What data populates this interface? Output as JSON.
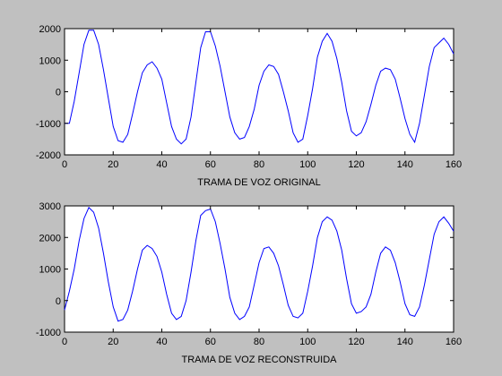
{
  "figure": {
    "background": "#c0c0c0"
  },
  "chart_data": [
    {
      "type": "line",
      "title": "",
      "xlabel": "TRAMA DE VOZ ORIGINAL",
      "ylabel": "",
      "xlim": [
        0,
        160
      ],
      "ylim": [
        -2000,
        2000
      ],
      "xticks": [
        0,
        20,
        40,
        60,
        80,
        100,
        120,
        140,
        160
      ],
      "yticks": [
        -2000,
        -1000,
        0,
        1000,
        2000
      ],
      "grid": false,
      "line_color": "#0000ff",
      "series": [
        {
          "x": [
            0,
            2,
            4,
            6,
            8,
            10,
            12,
            14,
            16,
            18,
            20,
            22,
            24,
            26,
            28,
            30,
            32,
            34,
            36,
            38,
            40,
            42,
            44,
            46,
            48,
            50,
            52,
            54,
            56,
            58,
            60,
            62,
            64,
            66,
            68,
            70,
            72,
            74,
            76,
            78,
            80,
            82,
            84,
            86,
            88,
            90,
            92,
            94,
            96,
            98,
            100,
            102,
            104,
            106,
            108,
            110,
            112,
            114,
            116,
            118,
            120,
            122,
            124,
            126,
            128,
            130,
            132,
            134,
            136,
            138,
            140,
            142,
            144,
            146,
            148,
            150,
            152,
            154,
            156,
            158,
            160
          ],
          "y": [
            -1000,
            -1000,
            -300,
            600,
            1500,
            1950,
            1950,
            1500,
            700,
            -200,
            -1100,
            -1550,
            -1600,
            -1350,
            -700,
            0,
            600,
            850,
            950,
            750,
            400,
            -350,
            -1100,
            -1500,
            -1650,
            -1500,
            -800,
            300,
            1400,
            1900,
            1900,
            1450,
            800,
            0,
            -800,
            -1300,
            -1500,
            -1450,
            -1100,
            -550,
            200,
            650,
            850,
            800,
            550,
            0,
            -600,
            -1300,
            -1600,
            -1500,
            -750,
            100,
            1100,
            1600,
            1850,
            1600,
            1050,
            300,
            -600,
            -1250,
            -1400,
            -1300,
            -950,
            -400,
            200,
            650,
            750,
            700,
            400,
            -200,
            -850,
            -1350,
            -1600,
            -1000,
            -100,
            800,
            1400,
            1550,
            1700,
            1500,
            1200
          ]
        }
      ]
    },
    {
      "type": "line",
      "title": "",
      "xlabel": "TRAMA DE VOZ RECONSTRUIDA",
      "ylabel": "",
      "xlim": [
        0,
        160
      ],
      "ylim": [
        -1000,
        3000
      ],
      "xticks": [
        0,
        20,
        40,
        60,
        80,
        100,
        120,
        140,
        160
      ],
      "yticks": [
        -1000,
        0,
        1000,
        2000,
        3000
      ],
      "grid": false,
      "line_color": "#0000ff",
      "series": [
        {
          "x": [
            0,
            2,
            4,
            6,
            8,
            10,
            12,
            14,
            16,
            18,
            20,
            22,
            24,
            26,
            28,
            30,
            32,
            34,
            36,
            38,
            40,
            42,
            44,
            46,
            48,
            50,
            52,
            54,
            56,
            58,
            60,
            62,
            64,
            66,
            68,
            70,
            72,
            74,
            76,
            78,
            80,
            82,
            84,
            86,
            88,
            90,
            92,
            94,
            96,
            98,
            100,
            102,
            104,
            106,
            108,
            110,
            112,
            114,
            116,
            118,
            120,
            122,
            124,
            126,
            128,
            130,
            132,
            134,
            136,
            138,
            140,
            142,
            144,
            146,
            148,
            150,
            152,
            154,
            156,
            158,
            160
          ],
          "y": [
            -300,
            300,
            1000,
            1900,
            2600,
            2950,
            2800,
            2300,
            1500,
            600,
            -200,
            -650,
            -600,
            -300,
            300,
            1000,
            1600,
            1750,
            1650,
            1400,
            900,
            200,
            -400,
            -600,
            -500,
            0,
            900,
            1900,
            2700,
            2850,
            2900,
            2500,
            1800,
            1000,
            100,
            -400,
            -600,
            -500,
            -200,
            500,
            1200,
            1650,
            1700,
            1500,
            1100,
            500,
            -150,
            -500,
            -550,
            -400,
            300,
            1100,
            2000,
            2500,
            2650,
            2550,
            2200,
            1600,
            700,
            -100,
            -400,
            -350,
            -200,
            200,
            900,
            1500,
            1700,
            1600,
            1200,
            600,
            -100,
            -450,
            -500,
            -200,
            500,
            1300,
            2100,
            2500,
            2650,
            2450,
            2200
          ]
        }
      ]
    }
  ]
}
